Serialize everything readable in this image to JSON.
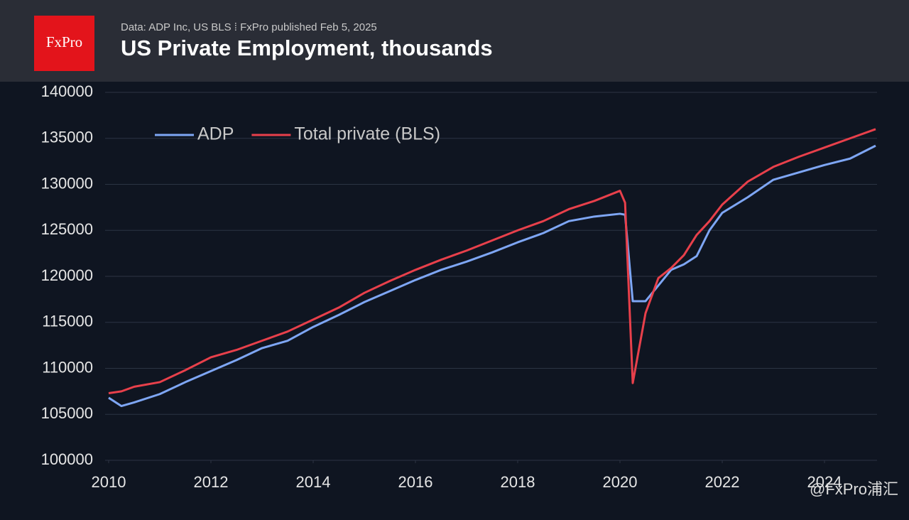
{
  "header": {
    "source": "Data: ADP Inc, US BLS ⁞ FxPro published Feb 5, 2025",
    "logo": "FxPro",
    "watermark": "@FxPro浦汇"
  },
  "chart_data": {
    "type": "line",
    "title": "US Private Employment, thousands",
    "x": [
      2010,
      2010.25,
      2010.5,
      2011,
      2011.5,
      2012,
      2012.5,
      2013,
      2013.5,
      2014,
      2014.5,
      2015,
      2015.5,
      2016,
      2016.5,
      2017,
      2017.5,
      2018,
      2018.5,
      2019,
      2019.5,
      2020,
      2020.1,
      2020.25,
      2020.5,
      2020.75,
      2021,
      2021.25,
      2021.5,
      2021.75,
      2022,
      2022.5,
      2023,
      2023.5,
      2024,
      2024.5,
      2025
    ],
    "series": [
      {
        "name": "ADP",
        "color": "#7ea6f4",
        "values": [
          106800,
          105900,
          106300,
          107200,
          108500,
          109700,
          110900,
          112200,
          113000,
          114500,
          115800,
          117200,
          118400,
          119600,
          120700,
          121600,
          122600,
          123700,
          124700,
          126000,
          126500,
          126800,
          126700,
          117300,
          117300,
          119000,
          120700,
          121300,
          122200,
          125000,
          126900,
          128600,
          130500,
          131300,
          132100,
          132800,
          134200
        ]
      },
      {
        "name": "Total private (BLS)",
        "color": "#e8404b",
        "values": [
          107300,
          107500,
          108000,
          108500,
          109800,
          111200,
          112000,
          113000,
          114000,
          115300,
          116600,
          118200,
          119500,
          120700,
          121800,
          122800,
          123900,
          125000,
          126000,
          127300,
          128200,
          129300,
          128000,
          108400,
          116000,
          119800,
          120900,
          122300,
          124500,
          126000,
          127800,
          130300,
          131900,
          133000,
          134000,
          135000,
          136000
        ]
      }
    ],
    "xlim": [
      2010,
      2025
    ],
    "xticks": [
      2010,
      2012,
      2014,
      2016,
      2018,
      2020,
      2022,
      2024
    ],
    "ylim": [
      100000,
      140000
    ],
    "yticks": [
      100000,
      105000,
      110000,
      115000,
      120000,
      125000,
      130000,
      135000,
      140000
    ],
    "grid": true,
    "legend": "top-left"
  }
}
